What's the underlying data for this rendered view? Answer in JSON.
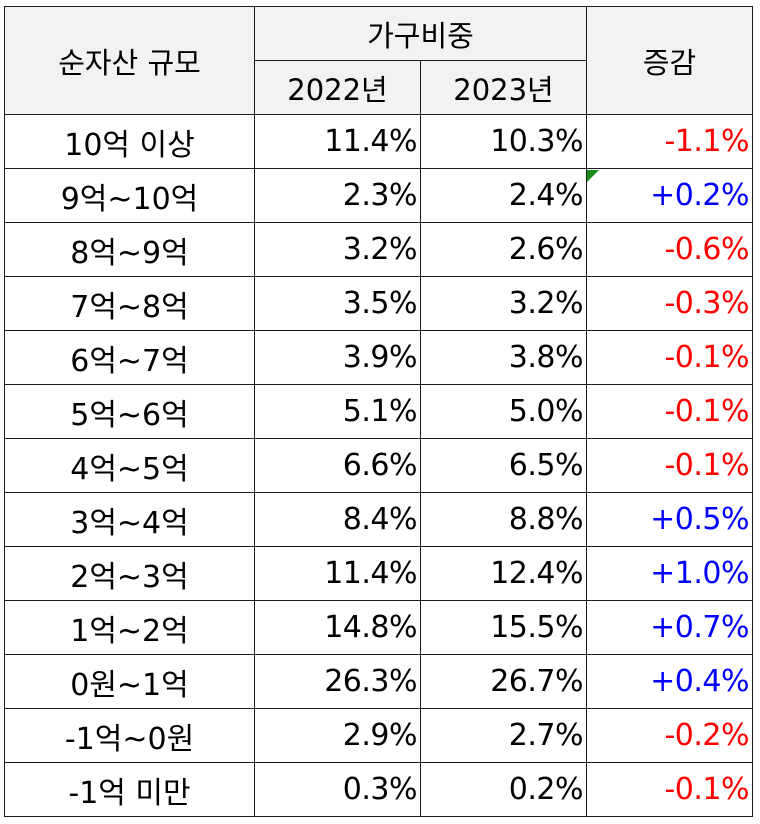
{
  "header": {
    "size_label": "순자산 규모",
    "share_label": "가구비중",
    "year1": "2022년",
    "year2": "2023년",
    "change_label": "증감"
  },
  "rows": [
    {
      "label": "10억 이상",
      "y2022": "11.4%",
      "y2023": "10.3%",
      "change": "-1.1%"
    },
    {
      "label": "9억~10억",
      "y2022": "2.3%",
      "y2023": "2.4%",
      "change": "+0.2%"
    },
    {
      "label": "8억~9억",
      "y2022": "3.2%",
      "y2023": "2.6%",
      "change": "-0.6%"
    },
    {
      "label": "7억~8억",
      "y2022": "3.5%",
      "y2023": "3.2%",
      "change": "-0.3%"
    },
    {
      "label": "6억~7억",
      "y2022": "3.9%",
      "y2023": "3.8%",
      "change": "-0.1%"
    },
    {
      "label": "5억~6억",
      "y2022": "5.1%",
      "y2023": "5.0%",
      "change": "-0.1%"
    },
    {
      "label": "4억~5억",
      "y2022": "6.6%",
      "y2023": "6.5%",
      "change": "-0.1%"
    },
    {
      "label": "3억~4억",
      "y2022": "8.4%",
      "y2023": "8.8%",
      "change": "+0.5%"
    },
    {
      "label": "2억~3억",
      "y2022": "11.4%",
      "y2023": "12.4%",
      "change": "+1.0%"
    },
    {
      "label": "1억~2억",
      "y2022": "14.8%",
      "y2023": "15.5%",
      "change": "+0.7%"
    },
    {
      "label": "0원~1억",
      "y2022": "26.3%",
      "y2023": "26.7%",
      "change": "+0.4%"
    },
    {
      "label": "-1억~0원",
      "y2022": "2.9%",
      "y2023": "2.7%",
      "change": "-0.2%"
    },
    {
      "label": "-1억 미만",
      "y2022": "0.3%",
      "y2023": "0.2%",
      "change": "-0.1%"
    }
  ],
  "colors": {
    "negative": "#ff0000",
    "positive": "#0000ff",
    "header_bg": "#f2f2f2",
    "comment_marker": "#1a8a1a"
  }
}
